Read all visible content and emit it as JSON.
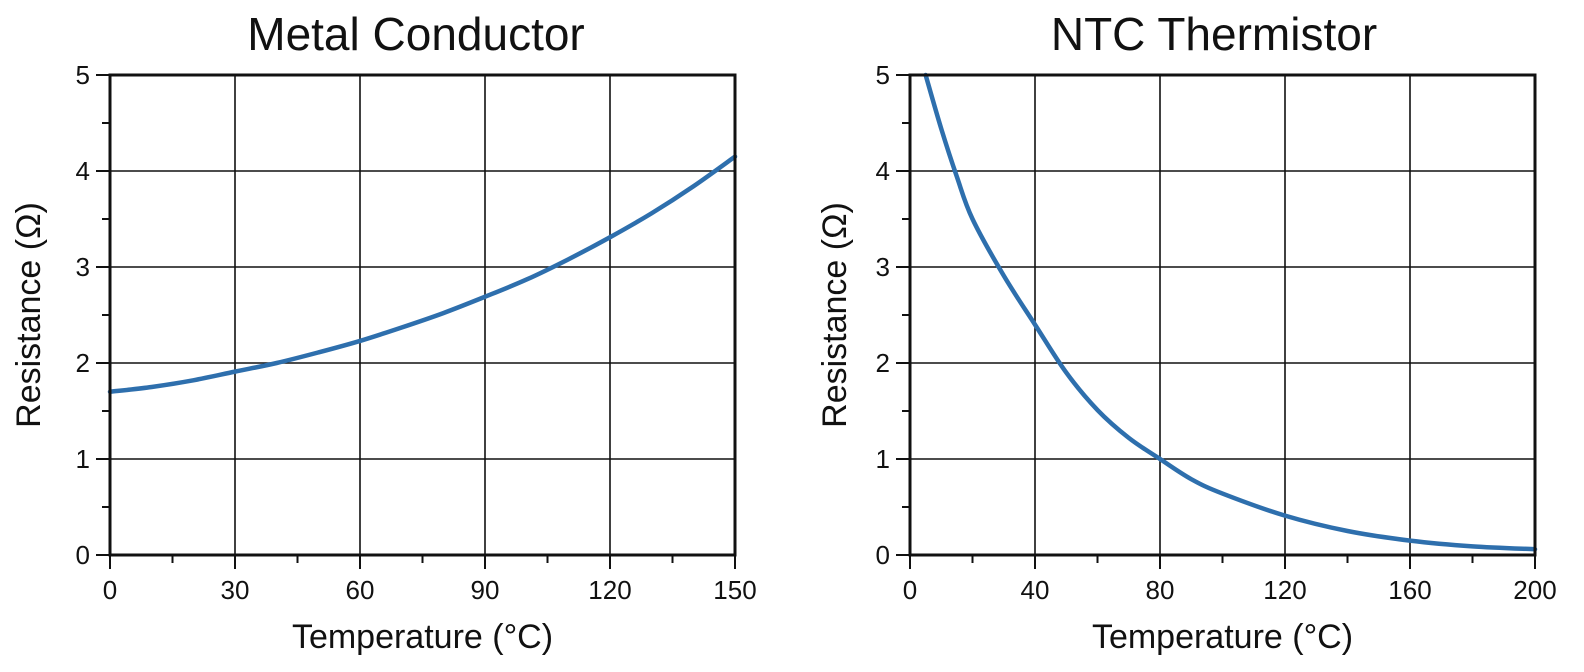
{
  "chart_data": [
    {
      "type": "line",
      "title": "Metal Conductor",
      "xlabel": "Temperature (°C)",
      "ylabel": "Resistance (Ω)",
      "xlim": [
        0,
        150
      ],
      "ylim": [
        0,
        5
      ],
      "xticks": [
        0,
        30,
        60,
        90,
        120,
        150
      ],
      "yticks": [
        0,
        1,
        2,
        3,
        4,
        5
      ],
      "xtick_labels": [
        "0",
        "30",
        "60",
        "90",
        "120",
        "150"
      ],
      "ytick_labels": [
        "0",
        "1",
        "2",
        "3",
        "4",
        "5"
      ],
      "grid": true,
      "line_color": "#2e6fad",
      "series": [
        {
          "x": [
            0,
            10,
            20,
            30,
            40,
            50,
            60,
            70,
            80,
            90,
            100,
            110,
            120,
            130,
            140,
            150
          ],
          "values": [
            1.7,
            1.75,
            1.82,
            1.91,
            2.0,
            2.11,
            2.23,
            2.37,
            2.52,
            2.69,
            2.87,
            3.08,
            3.31,
            3.56,
            3.84,
            4.15
          ]
        }
      ]
    },
    {
      "type": "line",
      "title": "NTC Thermistor",
      "xlabel": "Temperature (°C)",
      "ylabel": "Resistance (Ω)",
      "xlim": [
        0,
        200
      ],
      "ylim": [
        0,
        5
      ],
      "xticks": [
        0,
        40,
        80,
        120,
        160,
        200
      ],
      "yticks": [
        0,
        1,
        2,
        3,
        4,
        5
      ],
      "xtick_labels": [
        "0",
        "40",
        "80",
        "120",
        "160",
        "200"
      ],
      "ytick_labels": [
        "0",
        "1",
        "2",
        "3",
        "4",
        "5"
      ],
      "grid": true,
      "line_color": "#2e6fad",
      "series": [
        {
          "x": [
            5,
            10,
            15,
            20,
            30,
            40,
            50,
            60,
            70,
            80,
            90,
            100,
            120,
            140,
            160,
            180,
            200
          ],
          "values": [
            5.0,
            4.44,
            3.94,
            3.5,
            2.91,
            2.4,
            1.9,
            1.51,
            1.22,
            1.0,
            0.79,
            0.64,
            0.41,
            0.25,
            0.15,
            0.09,
            0.06
          ]
        }
      ]
    }
  ]
}
